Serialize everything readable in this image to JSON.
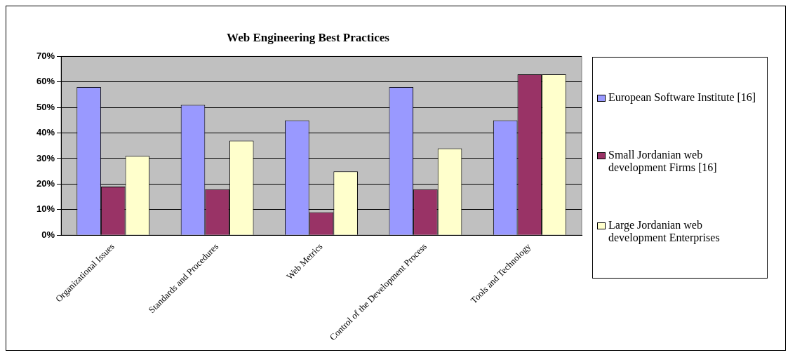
{
  "chart_data": {
    "type": "bar",
    "title": "Web Engineering Best Practices",
    "categories": [
      "Organizational Issues",
      "Standards and Procedures",
      "Web Metrics",
      "Control of the Development Process",
      "Tools and Technology"
    ],
    "series": [
      {
        "name": "European Software Institute [16]",
        "color": "#9999ff",
        "values": [
          58,
          51,
          45,
          58,
          45
        ]
      },
      {
        "name": "Small Jordanian web development Firms [16]",
        "color": "#993366",
        "values": [
          19,
          18,
          9,
          18,
          63
        ]
      },
      {
        "name": "Large Jordanian web development Enterprises",
        "color": "#ffffcc",
        "values": [
          31,
          37,
          25,
          34,
          63
        ]
      }
    ],
    "ylim": [
      0,
      70
    ],
    "yticks": [
      {
        "value": 0,
        "label": "0%"
      },
      {
        "value": 10,
        "label": "10%"
      },
      {
        "value": 20,
        "label": "20%"
      },
      {
        "value": 30,
        "label": "30%"
      },
      {
        "value": 40,
        "label": "40%"
      },
      {
        "value": 50,
        "label": "50%"
      },
      {
        "value": 60,
        "label": "60%"
      },
      {
        "value": 70,
        "label": "70%"
      }
    ],
    "grid": "y",
    "legend": "right"
  }
}
